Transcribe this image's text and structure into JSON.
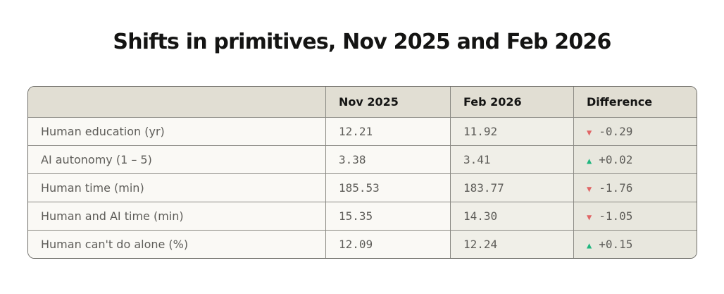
{
  "title": "Shifts in primitives, Nov 2025 and Feb 2026",
  "colors": {
    "down": "#e06666",
    "up": "#20b67f",
    "header": "#e1ded3"
  },
  "chart_data": {
    "type": "table",
    "title": "Shifts in primitives, Nov 2025 and Feb 2026",
    "columns": [
      "",
      "Nov 2025",
      "Feb 2026",
      "Difference"
    ],
    "rows": [
      {
        "label": "Human education (yr)",
        "nov": "12.21",
        "feb": "11.92",
        "diff": "-0.29",
        "dir": "down"
      },
      {
        "label": "AI autonomy (1 – 5)",
        "nov": "3.38",
        "feb": "3.41",
        "diff": "+0.02",
        "dir": "up"
      },
      {
        "label": "Human time (min)",
        "nov": "185.53",
        "feb": "183.77",
        "diff": "-1.76",
        "dir": "down"
      },
      {
        "label": "Human and AI time (min)",
        "nov": "15.35",
        "feb": "14.30",
        "diff": "-1.05",
        "dir": "down"
      },
      {
        "label": "Human can't do alone (%)",
        "nov": "12.09",
        "feb": "12.24",
        "diff": "+0.15",
        "dir": "up"
      }
    ]
  }
}
